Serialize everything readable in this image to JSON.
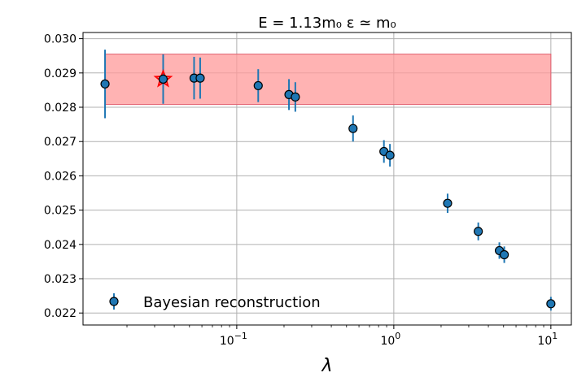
{
  "chart_data": {
    "type": "scatter",
    "title": "E = 1.13m₀      ε ≃ m₀",
    "xlabel": "λ",
    "ylabel": "",
    "xscale": "log",
    "xlim": [
      0.0105,
      13.5
    ],
    "ylim": [
      0.02165,
      0.03018
    ],
    "yticks": [
      "0.022",
      "0.023",
      "0.024",
      "0.025",
      "0.026",
      "0.027",
      "0.028",
      "0.029",
      "0.030"
    ],
    "xticks": [
      {
        "value": 0.1,
        "base": "10",
        "exp": "−1"
      },
      {
        "value": 1,
        "base": "10",
        "exp": "0"
      },
      {
        "value": 10,
        "base": "10",
        "exp": "1"
      }
    ],
    "grid": true,
    "band": {
      "x0": 0.0145,
      "x1": 10,
      "y0": 0.02808,
      "y1": 0.02955,
      "color": "#ff9999"
    },
    "series": [
      {
        "name": "Bayesian reconstruction",
        "color": "#1f77b4",
        "points": [
          {
            "x": 0.0145,
            "y": 0.02868,
            "err": 0.001
          },
          {
            "x": 0.034,
            "y": 0.02882,
            "err": 0.00072
          },
          {
            "x": 0.0535,
            "y": 0.02885,
            "err": 0.00062
          },
          {
            "x": 0.0585,
            "y": 0.02885,
            "err": 0.0006
          },
          {
            "x": 0.137,
            "y": 0.02863,
            "err": 0.00048
          },
          {
            "x": 0.215,
            "y": 0.02837,
            "err": 0.00045
          },
          {
            "x": 0.236,
            "y": 0.0283,
            "err": 0.00043
          },
          {
            "x": 0.55,
            "y": 0.02738,
            "err": 0.00038
          },
          {
            "x": 0.865,
            "y": 0.02671,
            "err": 0.00033
          },
          {
            "x": 0.945,
            "y": 0.0266,
            "err": 0.00033
          },
          {
            "x": 2.2,
            "y": 0.0252,
            "err": 0.00028
          },
          {
            "x": 3.45,
            "y": 0.02438,
            "err": 0.00026
          },
          {
            "x": 4.7,
            "y": 0.02382,
            "err": 0.00024
          },
          {
            "x": 5.05,
            "y": 0.0237,
            "err": 0.00024
          },
          {
            "x": 10,
            "y": 0.02227,
            "err": 0.0002
          }
        ]
      }
    ],
    "highlight": {
      "x": 0.034,
      "y": 0.02882,
      "marker": "star",
      "color": "#ff0000"
    },
    "legend": {
      "position": "lower-left",
      "label": "Bayesian reconstruction"
    }
  }
}
